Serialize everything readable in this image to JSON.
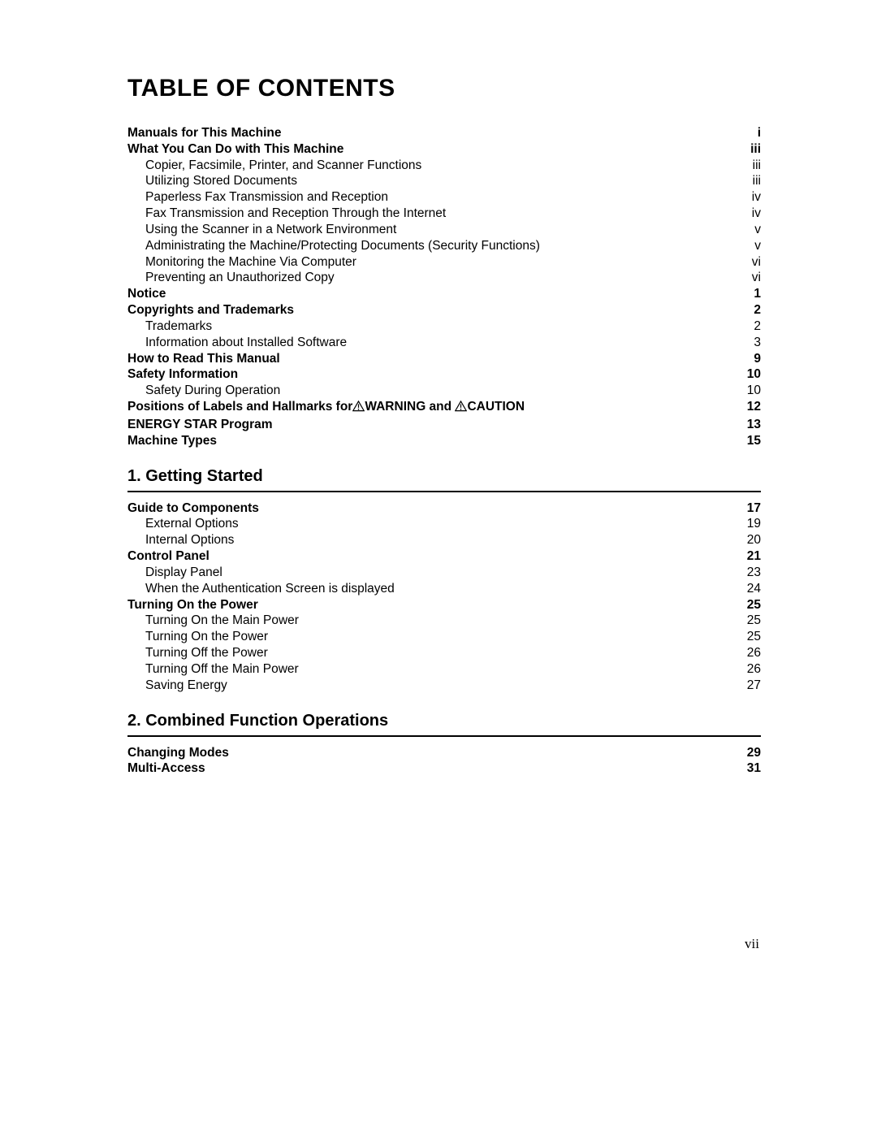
{
  "title": "TABLE OF CONTENTS",
  "pageNumber": "vii",
  "preSection": [
    {
      "level": 1,
      "label": "Manuals for This Machine",
      "page": "i"
    },
    {
      "level": 1,
      "label": "What You Can Do with This Machine",
      "page": "iii"
    },
    {
      "level": 2,
      "label": "Copier, Facsimile, Printer, and Scanner Functions",
      "page": "iii"
    },
    {
      "level": 2,
      "label": "Utilizing Stored Documents",
      "page": "iii"
    },
    {
      "level": 2,
      "label": "Paperless Fax Transmission and Reception",
      "page": "iv"
    },
    {
      "level": 2,
      "label": "Fax Transmission and Reception Through the Internet",
      "page": "iv"
    },
    {
      "level": 2,
      "label": "Using the Scanner in a Network Environment",
      "page": "v"
    },
    {
      "level": 2,
      "label": "Administrating the Machine/Protecting Documents (Security Functions)",
      "page": "v"
    },
    {
      "level": 2,
      "label": "Monitoring the Machine Via Computer",
      "page": "vi"
    },
    {
      "level": 2,
      "label": "Preventing an Unauthorized Copy",
      "page": "vi"
    },
    {
      "level": 1,
      "label": "Notice",
      "page": "1"
    },
    {
      "level": 1,
      "label": "Copyrights and Trademarks",
      "page": "2"
    },
    {
      "level": 2,
      "label": "Trademarks",
      "page": "2"
    },
    {
      "level": 2,
      "label": "Information about Installed Software",
      "page": "3"
    },
    {
      "level": 1,
      "label": "How to Read This Manual",
      "page": "9"
    },
    {
      "level": 1,
      "label": "Safety Information",
      "page": "10"
    },
    {
      "level": 2,
      "label": "Safety During Operation",
      "page": "10"
    },
    {
      "level": 1,
      "special": "warning",
      "page": "12"
    },
    {
      "level": 1,
      "label": "ENERGY STAR Program",
      "page": "13"
    },
    {
      "level": 1,
      "label": "Machine Types",
      "page": "15"
    }
  ],
  "warningParts": {
    "prefix": "Positions of Labels and Hallmarks for",
    "word1": "WARNING and ",
    "word2": "CAUTION"
  },
  "sections": [
    {
      "heading": "1. Getting Started",
      "items": [
        {
          "level": 1,
          "label": "Guide to Components",
          "page": "17"
        },
        {
          "level": 2,
          "label": "External Options",
          "page": "19"
        },
        {
          "level": 2,
          "label": "Internal Options",
          "page": "20"
        },
        {
          "level": 1,
          "label": "Control Panel",
          "page": "21"
        },
        {
          "level": 2,
          "label": "Display Panel",
          "page": "23"
        },
        {
          "level": 2,
          "label": "When the Authentication Screen is displayed",
          "page": "24"
        },
        {
          "level": 1,
          "label": "Turning On the Power",
          "page": "25"
        },
        {
          "level": 2,
          "label": "Turning On the Main Power",
          "page": "25"
        },
        {
          "level": 2,
          "label": "Turning On the Power",
          "page": "25"
        },
        {
          "level": 2,
          "label": "Turning Off the Power",
          "page": "26"
        },
        {
          "level": 2,
          "label": "Turning Off the Main Power",
          "page": "26"
        },
        {
          "level": 2,
          "label": "Saving Energy",
          "page": "27"
        }
      ]
    },
    {
      "heading": "2. Combined Function Operations",
      "items": [
        {
          "level": 1,
          "label": "Changing Modes",
          "page": "29"
        },
        {
          "level": 1,
          "label": "Multi-Access",
          "page": "31"
        }
      ]
    }
  ]
}
